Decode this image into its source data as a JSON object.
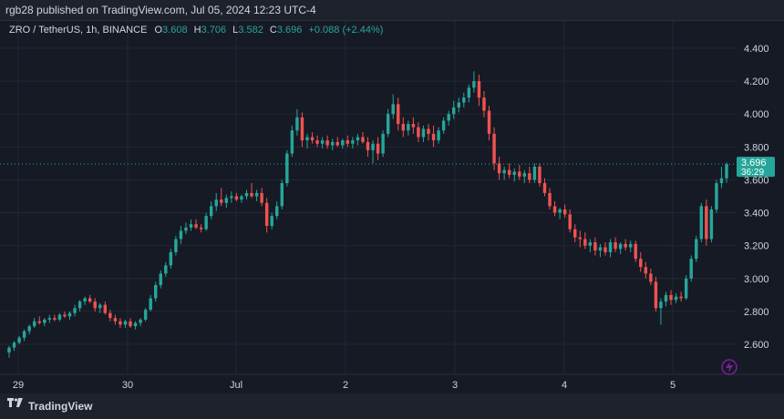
{
  "header": {
    "published_text": "rgb28 published on TradingView.com, Jul 05, 2024 12:23 UTC-4"
  },
  "legend": {
    "symbol": "ZRO / TetherUS, 1h, BINANCE",
    "open_label": "O",
    "open_value": "3.608",
    "high_label": "H",
    "high_value": "3.706",
    "low_label": "L",
    "low_value": "3.582",
    "close_label": "C",
    "close_value": "3.696",
    "change": "+0.088 (+2.44%)"
  },
  "price_badge": {
    "price": "3.696",
    "countdown": "36:29"
  },
  "footer": {
    "brand": "TradingView"
  },
  "colors": {
    "up": "#26a69a",
    "down": "#ef5350",
    "background": "#161a25",
    "grid": "#232733",
    "text": "#d1d4dc",
    "badge_accent": "#7b1fa2"
  },
  "icons": {
    "logo": "tradingview-logo-icon",
    "lightning": "lightning-icon"
  },
  "chart_data": {
    "type": "candlestick",
    "ylim": [
      2.45,
      4.5
    ],
    "y_ticks": [
      "2.600",
      "2.800",
      "3.000",
      "3.200",
      "3.400",
      "3.600",
      "3.800",
      "4.000",
      "4.200",
      "4.400"
    ],
    "x_ticks": [
      "29",
      "30",
      "Jul",
      "2",
      "3",
      "4",
      "5"
    ],
    "last_price": 3.696,
    "grid": true,
    "candles": [
      [
        2.55,
        2.59,
        2.52,
        2.58
      ],
      [
        2.58,
        2.62,
        2.56,
        2.61
      ],
      [
        2.61,
        2.65,
        2.6,
        2.64
      ],
      [
        2.64,
        2.69,
        2.62,
        2.68
      ],
      [
        2.68,
        2.72,
        2.66,
        2.71
      ],
      [
        2.71,
        2.76,
        2.7,
        2.74
      ],
      [
        2.74,
        2.77,
        2.72,
        2.73
      ],
      [
        2.73,
        2.76,
        2.71,
        2.75
      ],
      [
        2.75,
        2.78,
        2.73,
        2.76
      ],
      [
        2.76,
        2.78,
        2.74,
        2.75
      ],
      [
        2.75,
        2.79,
        2.74,
        2.78
      ],
      [
        2.78,
        2.8,
        2.76,
        2.77
      ],
      [
        2.77,
        2.8,
        2.75,
        2.79
      ],
      [
        2.79,
        2.84,
        2.77,
        2.82
      ],
      [
        2.82,
        2.87,
        2.8,
        2.86
      ],
      [
        2.86,
        2.89,
        2.84,
        2.88
      ],
      [
        2.88,
        2.9,
        2.85,
        2.86
      ],
      [
        2.86,
        2.88,
        2.8,
        2.82
      ],
      [
        2.82,
        2.85,
        2.79,
        2.84
      ],
      [
        2.84,
        2.86,
        2.78,
        2.79
      ],
      [
        2.79,
        2.81,
        2.74,
        2.76
      ],
      [
        2.76,
        2.78,
        2.72,
        2.74
      ],
      [
        2.74,
        2.76,
        2.7,
        2.72
      ],
      [
        2.72,
        2.75,
        2.7,
        2.74
      ],
      [
        2.74,
        2.76,
        2.7,
        2.71
      ],
      [
        2.71,
        2.74,
        2.69,
        2.73
      ],
      [
        2.73,
        2.76,
        2.71,
        2.75
      ],
      [
        2.75,
        2.82,
        2.74,
        2.81
      ],
      [
        2.81,
        2.9,
        2.8,
        2.88
      ],
      [
        2.88,
        2.98,
        2.86,
        2.96
      ],
      [
        2.96,
        3.05,
        2.94,
        3.03
      ],
      [
        3.03,
        3.1,
        3.01,
        3.08
      ],
      [
        3.08,
        3.18,
        3.06,
        3.16
      ],
      [
        3.16,
        3.26,
        3.14,
        3.24
      ],
      [
        3.24,
        3.32,
        3.21,
        3.29
      ],
      [
        3.29,
        3.34,
        3.27,
        3.31
      ],
      [
        3.31,
        3.36,
        3.29,
        3.33
      ],
      [
        3.33,
        3.36,
        3.3,
        3.31
      ],
      [
        3.31,
        3.33,
        3.28,
        3.3
      ],
      [
        3.3,
        3.4,
        3.29,
        3.38
      ],
      [
        3.38,
        3.47,
        3.36,
        3.44
      ],
      [
        3.44,
        3.52,
        3.41,
        3.48
      ],
      [
        3.48,
        3.55,
        3.44,
        3.46
      ],
      [
        3.46,
        3.51,
        3.43,
        3.49
      ],
      [
        3.49,
        3.53,
        3.46,
        3.5
      ],
      [
        3.5,
        3.52,
        3.47,
        3.48
      ],
      [
        3.48,
        3.51,
        3.46,
        3.5
      ],
      [
        3.5,
        3.54,
        3.48,
        3.52
      ],
      [
        3.52,
        3.58,
        3.49,
        3.5
      ],
      [
        3.5,
        3.54,
        3.47,
        3.52
      ],
      [
        3.52,
        3.55,
        3.44,
        3.46
      ],
      [
        3.46,
        3.49,
        3.28,
        3.32
      ],
      [
        3.32,
        3.4,
        3.3,
        3.38
      ],
      [
        3.38,
        3.47,
        3.36,
        3.44
      ],
      [
        3.44,
        3.6,
        3.42,
        3.58
      ],
      [
        3.58,
        3.78,
        3.56,
        3.76
      ],
      [
        3.76,
        3.93,
        3.74,
        3.9
      ],
      [
        3.9,
        4.03,
        3.87,
        3.98
      ],
      [
        3.98,
        4.01,
        3.8,
        3.84
      ],
      [
        3.84,
        3.88,
        3.79,
        3.86
      ],
      [
        3.86,
        3.89,
        3.82,
        3.84
      ],
      [
        3.84,
        3.87,
        3.8,
        3.82
      ],
      [
        3.82,
        3.86,
        3.79,
        3.84
      ],
      [
        3.84,
        3.87,
        3.79,
        3.81
      ],
      [
        3.81,
        3.85,
        3.78,
        3.83
      ],
      [
        3.83,
        3.86,
        3.8,
        3.81
      ],
      [
        3.81,
        3.85,
        3.79,
        3.84
      ],
      [
        3.84,
        3.87,
        3.8,
        3.82
      ],
      [
        3.82,
        3.86,
        3.79,
        3.84
      ],
      [
        3.84,
        3.88,
        3.81,
        3.86
      ],
      [
        3.86,
        3.89,
        3.82,
        3.83
      ],
      [
        3.83,
        3.86,
        3.74,
        3.78
      ],
      [
        3.78,
        3.84,
        3.7,
        3.82
      ],
      [
        3.82,
        3.86,
        3.72,
        3.76
      ],
      [
        3.76,
        3.9,
        3.74,
        3.88
      ],
      [
        3.88,
        4.03,
        3.86,
        4.0
      ],
      [
        4.0,
        4.12,
        3.97,
        4.06
      ],
      [
        4.06,
        4.1,
        3.9,
        3.94
      ],
      [
        3.94,
        3.98,
        3.86,
        3.9
      ],
      [
        3.9,
        3.96,
        3.87,
        3.94
      ],
      [
        3.94,
        3.98,
        3.88,
        3.92
      ],
      [
        3.92,
        3.95,
        3.83,
        3.86
      ],
      [
        3.86,
        3.93,
        3.83,
        3.91
      ],
      [
        3.91,
        3.94,
        3.84,
        3.88
      ],
      [
        3.88,
        3.93,
        3.8,
        3.84
      ],
      [
        3.84,
        3.92,
        3.82,
        3.9
      ],
      [
        3.9,
        3.98,
        3.88,
        3.96
      ],
      [
        3.96,
        4.02,
        3.93,
        4.0
      ],
      [
        4.0,
        4.08,
        3.97,
        4.04
      ],
      [
        4.04,
        4.1,
        4.01,
        4.07
      ],
      [
        4.07,
        4.13,
        4.04,
        4.1
      ],
      [
        4.1,
        4.18,
        4.07,
        4.16
      ],
      [
        4.16,
        4.26,
        4.13,
        4.2
      ],
      [
        4.2,
        4.24,
        4.05,
        4.1
      ],
      [
        4.1,
        4.14,
        3.98,
        4.02
      ],
      [
        4.02,
        4.05,
        3.84,
        3.88
      ],
      [
        3.88,
        3.92,
        3.66,
        3.7
      ],
      [
        3.7,
        3.74,
        3.6,
        3.64
      ],
      [
        3.64,
        3.68,
        3.6,
        3.66
      ],
      [
        3.66,
        3.7,
        3.61,
        3.63
      ],
      [
        3.63,
        3.67,
        3.59,
        3.65
      ],
      [
        3.65,
        3.69,
        3.6,
        3.62
      ],
      [
        3.62,
        3.66,
        3.58,
        3.64
      ],
      [
        3.64,
        3.68,
        3.58,
        3.6
      ],
      [
        3.6,
        3.7,
        3.58,
        3.68
      ],
      [
        3.68,
        3.7,
        3.56,
        3.58
      ],
      [
        3.58,
        3.61,
        3.5,
        3.52
      ],
      [
        3.52,
        3.55,
        3.42,
        3.44
      ],
      [
        3.44,
        3.47,
        3.38,
        3.4
      ],
      [
        3.4,
        3.43,
        3.36,
        3.42
      ],
      [
        3.42,
        3.45,
        3.37,
        3.39
      ],
      [
        3.39,
        3.42,
        3.28,
        3.3
      ],
      [
        3.3,
        3.33,
        3.22,
        3.25
      ],
      [
        3.25,
        3.29,
        3.19,
        3.24
      ],
      [
        3.24,
        3.28,
        3.18,
        3.2
      ],
      [
        3.2,
        3.24,
        3.16,
        3.22
      ],
      [
        3.22,
        3.25,
        3.14,
        3.17
      ],
      [
        3.17,
        3.21,
        3.13,
        3.19
      ],
      [
        3.19,
        3.22,
        3.14,
        3.16
      ],
      [
        3.16,
        3.24,
        3.13,
        3.22
      ],
      [
        3.22,
        3.25,
        3.16,
        3.18
      ],
      [
        3.18,
        3.22,
        3.15,
        3.21
      ],
      [
        3.21,
        3.24,
        3.17,
        3.19
      ],
      [
        3.19,
        3.23,
        3.16,
        3.21
      ],
      [
        3.21,
        3.23,
        3.1,
        3.12
      ],
      [
        3.12,
        3.16,
        3.04,
        3.07
      ],
      [
        3.07,
        3.1,
        3.0,
        3.03
      ],
      [
        3.03,
        3.06,
        2.96,
        2.98
      ],
      [
        2.98,
        3.01,
        2.8,
        2.82
      ],
      [
        2.82,
        2.88,
        2.72,
        2.86
      ],
      [
        2.86,
        2.92,
        2.83,
        2.9
      ],
      [
        2.9,
        2.93,
        2.84,
        2.87
      ],
      [
        2.87,
        2.91,
        2.85,
        2.89
      ],
      [
        2.89,
        2.92,
        2.86,
        2.88
      ],
      [
        2.88,
        3.02,
        2.87,
        3.0
      ],
      [
        3.0,
        3.14,
        2.98,
        3.12
      ],
      [
        3.12,
        3.26,
        3.1,
        3.24
      ],
      [
        3.24,
        3.46,
        3.22,
        3.44
      ],
      [
        3.44,
        3.48,
        3.2,
        3.24
      ],
      [
        3.24,
        3.44,
        3.22,
        3.42
      ],
      [
        3.42,
        3.6,
        3.4,
        3.58
      ],
      [
        3.58,
        3.68,
        3.55,
        3.61
      ],
      [
        3.61,
        3.706,
        3.582,
        3.696
      ]
    ]
  }
}
